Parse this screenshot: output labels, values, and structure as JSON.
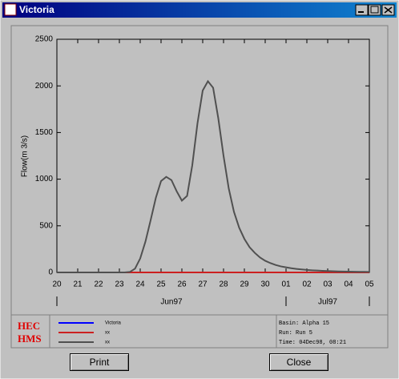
{
  "window": {
    "title": "Victoria"
  },
  "chart_data": {
    "type": "line",
    "y_label": "Flow(m 3/s)",
    "x": [
      "1997-06-20T00:00",
      "1997-06-20T06:00",
      "1997-06-20T12:00",
      "1997-06-20T18:00",
      "1997-06-21T00:00",
      "1997-06-21T06:00",
      "1997-06-21T12:00",
      "1997-06-21T18:00",
      "1997-06-22T00:00",
      "1997-06-22T06:00",
      "1997-06-22T12:00",
      "1997-06-22T18:00",
      "1997-06-23T00:00",
      "1997-06-23T06:00",
      "1997-06-23T12:00",
      "1997-06-23T18:00",
      "1997-06-24T00:00",
      "1997-06-24T06:00",
      "1997-06-24T12:00",
      "1997-06-24T18:00",
      "1997-06-25T00:00",
      "1997-06-25T06:00",
      "1997-06-25T12:00",
      "1997-06-25T18:00",
      "1997-06-26T00:00",
      "1997-06-26T06:00",
      "1997-06-26T12:00",
      "1997-06-26T18:00",
      "1997-06-27T00:00",
      "1997-06-27T06:00",
      "1997-06-27T12:00",
      "1997-06-27T18:00",
      "1997-06-28T00:00",
      "1997-06-28T06:00",
      "1997-06-28T12:00",
      "1997-06-28T18:00",
      "1997-06-29T00:00",
      "1997-06-29T06:00",
      "1997-06-29T12:00",
      "1997-06-29T18:00",
      "1997-06-30T00:00",
      "1997-06-30T06:00",
      "1997-06-30T12:00",
      "1997-06-30T18:00",
      "1997-07-01T00:00",
      "1997-07-01T06:00",
      "1997-07-01T12:00",
      "1997-07-01T18:00",
      "1997-07-02T00:00",
      "1997-07-02T06:00",
      "1997-07-02T12:00",
      "1997-07-02T18:00",
      "1997-07-03T00:00",
      "1997-07-03T06:00",
      "1997-07-03T12:00",
      "1997-07-03T18:00",
      "1997-07-04T00:00",
      "1997-07-04T06:00",
      "1997-07-04T12:00",
      "1997-07-04T18:00",
      "1997-07-05T00:00"
    ],
    "series": [
      {
        "name": "Victoria",
        "color": "#0000ff",
        "values": [
          0,
          0,
          0,
          0,
          0,
          0,
          0,
          0,
          0,
          0,
          0,
          0,
          0,
          0,
          0,
          0,
          0,
          0,
          0,
          0,
          0,
          0,
          0,
          0,
          0,
          0,
          0,
          0,
          0,
          0,
          0,
          0,
          0,
          0,
          0,
          0,
          0,
          0,
          0,
          0,
          0,
          0,
          0,
          0,
          0,
          0,
          0,
          0,
          0,
          0,
          0,
          0,
          0,
          0,
          0,
          0,
          0,
          0,
          0,
          0,
          0
        ]
      },
      {
        "name": "xx",
        "color": "#cc2020",
        "values": [
          0,
          0,
          0,
          0,
          0,
          0,
          0,
          0,
          0,
          0,
          0,
          0,
          0,
          0,
          0,
          0,
          0,
          0,
          0,
          0,
          0,
          0,
          0,
          0,
          0,
          0,
          0,
          0,
          0,
          0,
          0,
          0,
          0,
          0,
          0,
          0,
          0,
          0,
          0,
          0,
          0,
          0,
          0,
          0,
          0,
          0,
          0,
          0,
          0,
          0,
          0,
          0,
          0,
          0,
          0,
          0,
          0,
          0,
          0,
          0,
          0
        ]
      },
      {
        "name": "xx",
        "color": "#505050",
        "values": [
          0,
          0,
          0,
          0,
          0,
          0,
          0,
          0,
          0,
          0,
          0,
          0,
          0,
          0,
          5,
          40,
          150,
          330,
          560,
          800,
          980,
          1025,
          990,
          870,
          770,
          820,
          1150,
          1600,
          1950,
          2050,
          1980,
          1650,
          1250,
          900,
          650,
          480,
          360,
          270,
          210,
          160,
          125,
          100,
          80,
          65,
          55,
          45,
          38,
          32,
          27,
          23,
          20,
          17,
          15,
          13,
          11,
          10,
          9,
          8,
          7,
          6,
          5
        ]
      }
    ],
    "xlim": [
      "1997-06-20T00:00",
      "1997-07-05T00:00"
    ],
    "xticks": [
      {
        "value": "1997-06-20T00:00",
        "label": "20"
      },
      {
        "value": "1997-06-21T00:00",
        "label": "21"
      },
      {
        "value": "1997-06-22T00:00",
        "label": "22"
      },
      {
        "value": "1997-06-23T00:00",
        "label": "23"
      },
      {
        "value": "1997-06-24T00:00",
        "label": "24"
      },
      {
        "value": "1997-06-25T00:00",
        "label": "25"
      },
      {
        "value": "1997-06-26T00:00",
        "label": "26"
      },
      {
        "value": "1997-06-27T00:00",
        "label": "27"
      },
      {
        "value": "1997-06-28T00:00",
        "label": "28"
      },
      {
        "value": "1997-06-29T00:00",
        "label": "29"
      },
      {
        "value": "1997-06-30T00:00",
        "label": "30"
      },
      {
        "value": "1997-07-01T00:00",
        "label": "01"
      },
      {
        "value": "1997-07-02T00:00",
        "label": "02"
      },
      {
        "value": "1997-07-03T00:00",
        "label": "03"
      },
      {
        "value": "1997-07-04T00:00",
        "label": "04"
      },
      {
        "value": "1997-07-05T00:00",
        "label": "05"
      }
    ],
    "months": [
      {
        "label": "Jun97",
        "start": "1997-06-20T00:00",
        "end": "1997-07-01T00:00"
      },
      {
        "label": "Jul97",
        "start": "1997-07-01T00:00",
        "end": "1997-07-05T00:00"
      }
    ],
    "ylim": [
      0,
      2500
    ],
    "yticks": [
      0,
      500,
      1000,
      1500,
      2000,
      2500
    ]
  },
  "logo": [
    "HEC",
    "HMS"
  ],
  "info": [
    "Basin: Alpha 15",
    "Run: Run 5",
    "Time: 04Dec98, 08:21"
  ],
  "buttons": [
    "Print",
    "Close"
  ]
}
